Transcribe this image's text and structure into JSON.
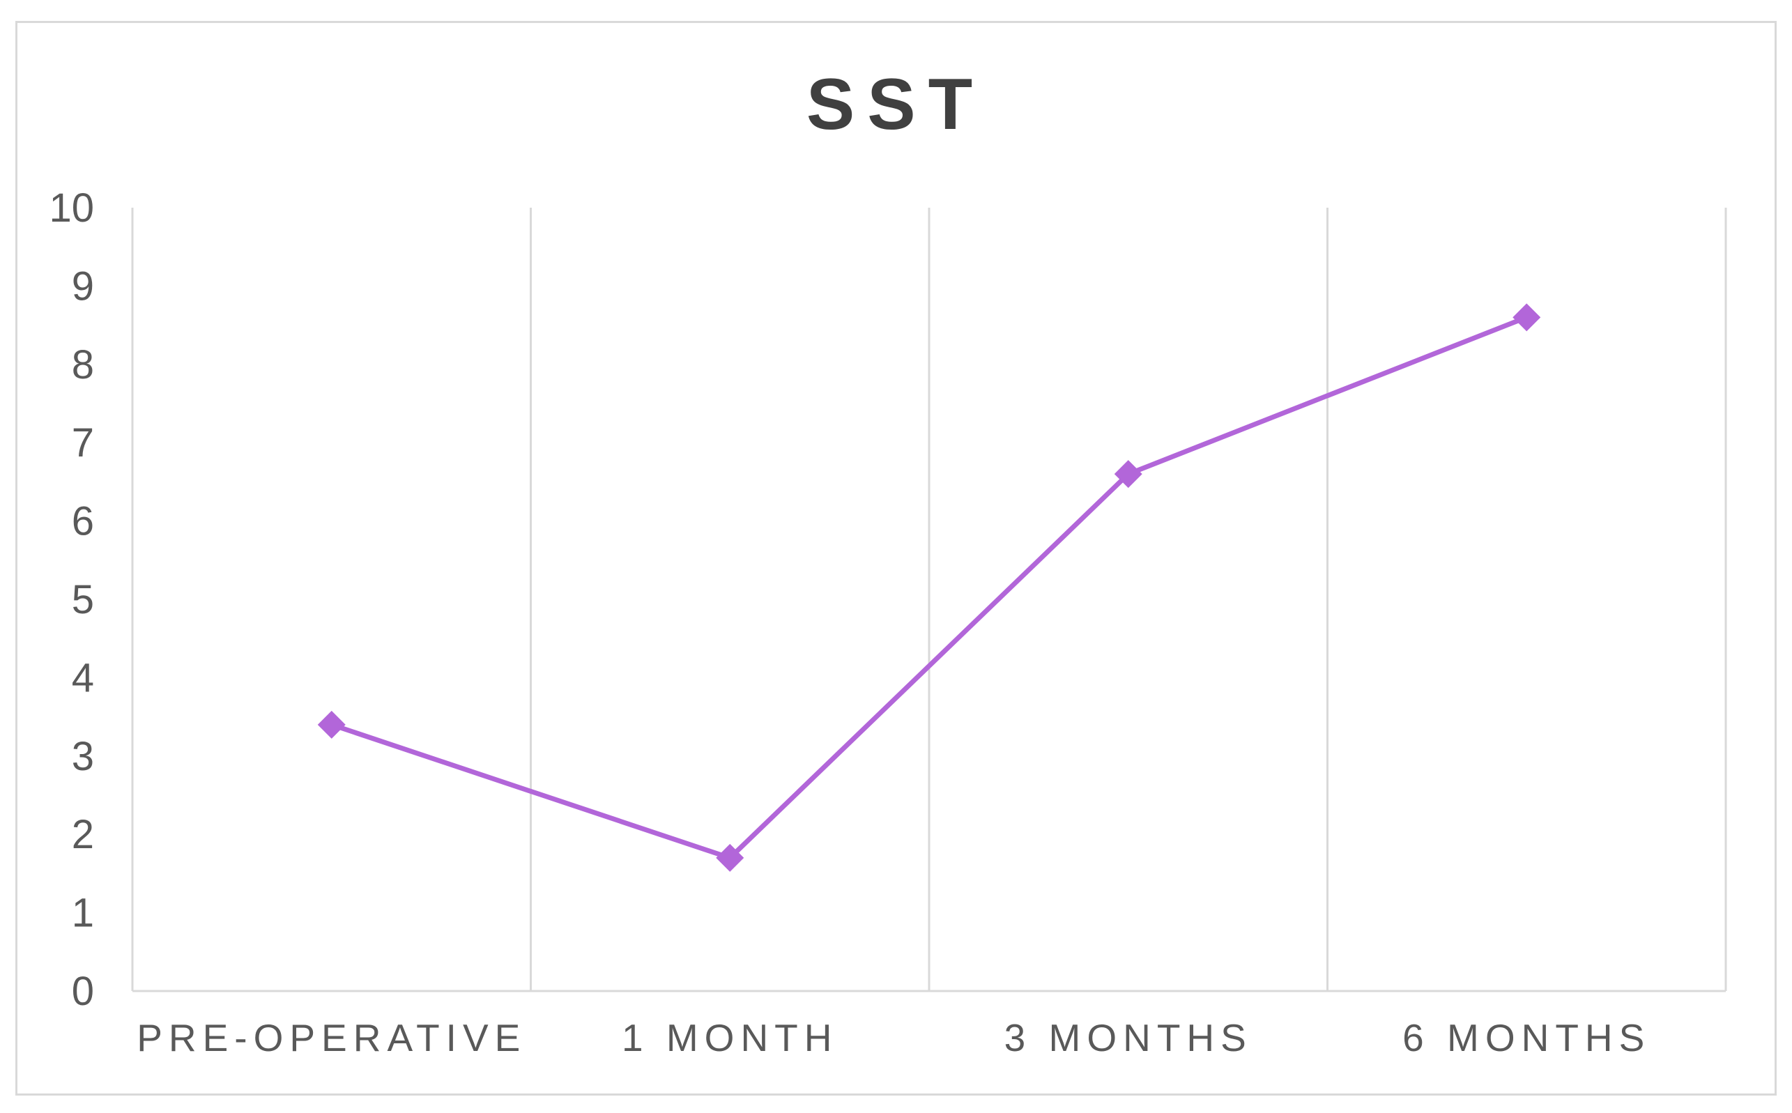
{
  "chart_data": {
    "type": "line",
    "title": "SST",
    "xlabel": "",
    "ylabel": "",
    "categories": [
      "PRE-OPERATIVE",
      "1 MONTH",
      "3 MONTHS",
      "6 MONTHS"
    ],
    "series": [
      {
        "values": [
          3.4,
          1.7,
          6.6,
          8.6
        ],
        "color": "#b266d9",
        "marker": "diamond"
      }
    ],
    "ylim": [
      0,
      10
    ],
    "yticks": [
      "0",
      "1",
      "2",
      "3",
      "4",
      "5",
      "6",
      "7",
      "8",
      "9",
      "10"
    ],
    "grid": "vertical",
    "legend": "none"
  },
  "colors": {
    "series": "#b266d9",
    "grid": "#d9d9d9",
    "text": "#595959",
    "title": "#404040"
  }
}
